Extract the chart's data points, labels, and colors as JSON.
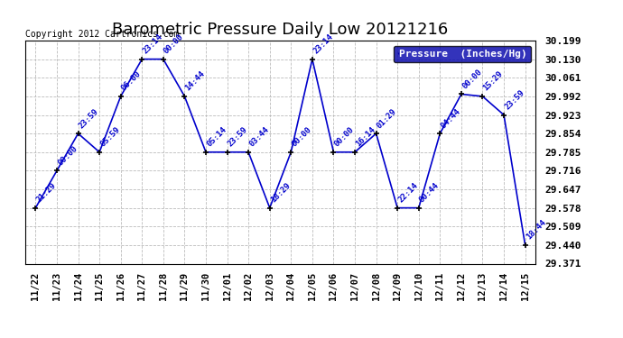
{
  "title": "Barometric Pressure Daily Low 20121216",
  "copyright": "Copyright 2012 Cartronics.com",
  "legend_label": "Pressure  (Inches/Hg)",
  "x_labels": [
    "11/22",
    "11/23",
    "11/24",
    "11/25",
    "11/26",
    "11/27",
    "11/28",
    "11/29",
    "11/30",
    "12/01",
    "12/02",
    "12/03",
    "12/04",
    "12/05",
    "12/06",
    "12/07",
    "12/08",
    "12/09",
    "12/10",
    "12/11",
    "12/12",
    "12/13",
    "12/14",
    "12/15"
  ],
  "y_values": [
    29.578,
    29.716,
    29.854,
    29.785,
    29.992,
    30.13,
    30.13,
    29.992,
    29.785,
    29.785,
    29.785,
    29.578,
    29.785,
    30.13,
    29.785,
    29.785,
    29.854,
    29.578,
    29.578,
    29.854,
    30.0,
    29.992,
    29.923,
    29.44
  ],
  "annotations": [
    "21:29",
    "00:00",
    "23:59",
    "05:59",
    "06:00",
    "23:14",
    "00:00",
    "14:44",
    "05:14",
    "23:59",
    "03:44",
    "18:29",
    "00:00",
    "23:14",
    "00:00",
    "16:14",
    "01:29",
    "22:14",
    "00:44",
    "04:44",
    "00:00",
    "15:29",
    "23:59",
    "18:44"
  ],
  "ylim": [
    29.371,
    30.199
  ],
  "yticks": [
    29.371,
    29.44,
    29.509,
    29.578,
    29.647,
    29.716,
    29.785,
    29.854,
    29.923,
    29.992,
    30.061,
    30.13,
    30.199
  ],
  "line_color": "#0000cc",
  "marker_color": "#000000",
  "bg_color": "#ffffff",
  "grid_color": "#bbbbbb",
  "title_fontsize": 13,
  "annotation_fontsize": 6.5,
  "copyright_fontsize": 7,
  "legend_bg": "#0000aa",
  "legend_text_color": "#ffffff"
}
